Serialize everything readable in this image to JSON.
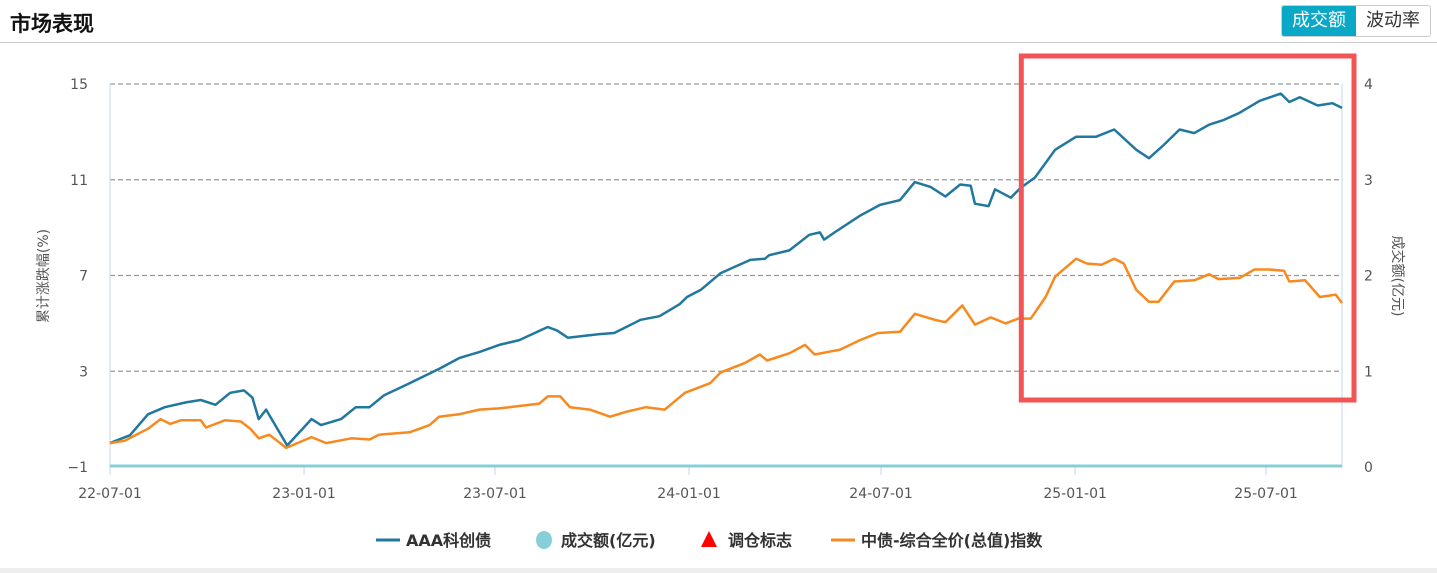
{
  "header": {
    "title": "市场表现",
    "tabs": [
      {
        "label": "成交额",
        "active": true
      },
      {
        "label": "波动率",
        "active": false
      }
    ]
  },
  "colors": {
    "series1": "#21789e",
    "series2": "#f7891f",
    "volume": "#86cfd8",
    "marker": "#ff0000",
    "highlight": "#f25555",
    "accent": "#0aa8c7"
  },
  "chart_data": {
    "type": "line",
    "ylabel": "累计涨跌幅(%)",
    "y2label": "成交额(亿元)",
    "ylim": [
      -1,
      15
    ],
    "y2lim": [
      0,
      4
    ],
    "yticks": [
      "15",
      "11",
      "7",
      "3",
      "−1"
    ],
    "y2ticks": [
      "4",
      "3",
      "2",
      "1",
      "0"
    ],
    "xticks": [
      "22-07-01",
      "23-01-01",
      "23-07-01",
      "24-01-01",
      "24-07-01",
      "25-01-01",
      "25-07-01"
    ],
    "xrange": [
      "2022-07-01",
      "2025-09-11"
    ],
    "grid": "horizontal dashed",
    "legend_position": "bottom",
    "legend": [
      "AAA科创债",
      "成交额(亿元)",
      "调仓标志",
      "中债-综合全价(总值)指数"
    ],
    "highlight_box": {
      "from": "2024-11-10",
      "to": "2025-09-11"
    },
    "series": [
      {
        "name": "AAA科创债",
        "axis": "left",
        "points": [
          [
            "2022-07-01",
            0.0
          ],
          [
            "2022-07-20",
            0.33
          ],
          [
            "2022-08-06",
            1.2
          ],
          [
            "2022-08-22",
            1.5
          ],
          [
            "2022-09-11",
            1.7
          ],
          [
            "2022-09-25",
            1.8
          ],
          [
            "2022-10-09",
            1.6
          ],
          [
            "2022-10-23",
            2.1
          ],
          [
            "2022-11-05",
            2.2
          ],
          [
            "2022-11-13",
            1.9
          ],
          [
            "2022-11-19",
            1.0
          ],
          [
            "2022-11-26",
            1.4
          ],
          [
            "2022-12-16",
            -0.1
          ],
          [
            "2023-01-08",
            1.0
          ],
          [
            "2023-01-17",
            0.75
          ],
          [
            "2023-02-05",
            1.0
          ],
          [
            "2023-02-19",
            1.5
          ],
          [
            "2023-03-04",
            1.5
          ],
          [
            "2023-03-18",
            2.0
          ],
          [
            "2023-04-11",
            2.5
          ],
          [
            "2023-05-09",
            3.1
          ],
          [
            "2023-05-28",
            3.55
          ],
          [
            "2023-06-16",
            3.8
          ],
          [
            "2023-07-05",
            4.1
          ],
          [
            "2023-07-24",
            4.3
          ],
          [
            "2023-08-20",
            4.85
          ],
          [
            "2023-08-29",
            4.7
          ],
          [
            "2023-09-08",
            4.4
          ],
          [
            "2023-10-08",
            4.55
          ],
          [
            "2023-10-22",
            4.6
          ],
          [
            "2023-11-16",
            5.15
          ],
          [
            "2023-12-04",
            5.3
          ],
          [
            "2023-12-23",
            5.8
          ],
          [
            "2023-12-30",
            6.1
          ],
          [
            "2024-01-12",
            6.4
          ],
          [
            "2024-01-31",
            7.1
          ],
          [
            "2024-02-28",
            7.65
          ],
          [
            "2024-03-13",
            7.7
          ],
          [
            "2024-03-17",
            7.85
          ],
          [
            "2024-04-05",
            8.05
          ],
          [
            "2024-04-24",
            8.7
          ],
          [
            "2024-05-04",
            8.8
          ],
          [
            "2024-05-08",
            8.5
          ],
          [
            "2024-05-18",
            8.8
          ],
          [
            "2024-06-11",
            9.5
          ],
          [
            "2024-06-30",
            9.95
          ],
          [
            "2024-07-19",
            10.15
          ],
          [
            "2024-08-02",
            10.9
          ],
          [
            "2024-08-17",
            10.7
          ],
          [
            "2024-08-31",
            10.3
          ],
          [
            "2024-09-14",
            10.8
          ],
          [
            "2024-09-24",
            10.75
          ],
          [
            "2024-09-28",
            10.0
          ],
          [
            "2024-10-11",
            9.9
          ],
          [
            "2024-10-17",
            10.6
          ],
          [
            "2024-11-01",
            10.25
          ],
          [
            "2024-11-10",
            10.65
          ],
          [
            "2024-11-24",
            11.1
          ],
          [
            "2024-12-13",
            12.25
          ],
          [
            "2025-01-02",
            12.8
          ],
          [
            "2025-01-21",
            12.8
          ],
          [
            "2025-02-07",
            13.1
          ],
          [
            "2025-02-28",
            12.25
          ],
          [
            "2025-03-12",
            11.9
          ],
          [
            "2025-03-26",
            12.45
          ],
          [
            "2025-04-10",
            13.1
          ],
          [
            "2025-04-24",
            12.95
          ],
          [
            "2025-05-08",
            13.3
          ],
          [
            "2025-05-22",
            13.5
          ],
          [
            "2025-06-06",
            13.8
          ],
          [
            "2025-06-25",
            14.3
          ],
          [
            "2025-07-15",
            14.6
          ],
          [
            "2025-07-23",
            14.25
          ],
          [
            "2025-08-02",
            14.45
          ],
          [
            "2025-08-19",
            14.1
          ],
          [
            "2025-09-02",
            14.2
          ],
          [
            "2025-09-11",
            14.0
          ]
        ]
      },
      {
        "name": "成交额(亿元)",
        "axis": "right",
        "points": [
          [
            "2022-07-01",
            0.01
          ],
          [
            "2025-09-11",
            0.01
          ]
        ]
      },
      {
        "name": "中债-综合全价(总值)指数",
        "axis": "left",
        "points": [
          [
            "2022-07-01",
            0.0
          ],
          [
            "2022-07-15",
            0.1
          ],
          [
            "2022-08-06",
            0.6
          ],
          [
            "2022-08-18",
            1.0
          ],
          [
            "2022-08-27",
            0.8
          ],
          [
            "2022-09-06",
            0.95
          ],
          [
            "2022-09-25",
            0.95
          ],
          [
            "2022-09-30",
            0.65
          ],
          [
            "2022-10-18",
            0.95
          ],
          [
            "2022-11-02",
            0.9
          ],
          [
            "2022-11-11",
            0.6
          ],
          [
            "2022-11-19",
            0.2
          ],
          [
            "2022-11-29",
            0.35
          ],
          [
            "2022-12-15",
            -0.2
          ],
          [
            "2023-01-08",
            0.25
          ],
          [
            "2023-01-22",
            0.0
          ],
          [
            "2023-02-15",
            0.2
          ],
          [
            "2023-03-04",
            0.15
          ],
          [
            "2023-03-13",
            0.35
          ],
          [
            "2023-04-11",
            0.45
          ],
          [
            "2023-04-30",
            0.75
          ],
          [
            "2023-05-09",
            1.1
          ],
          [
            "2023-05-28",
            1.2
          ],
          [
            "2023-06-16",
            1.4
          ],
          [
            "2023-07-05",
            1.45
          ],
          [
            "2023-07-24",
            1.55
          ],
          [
            "2023-08-12",
            1.65
          ],
          [
            "2023-08-20",
            1.95
          ],
          [
            "2023-09-01",
            1.95
          ],
          [
            "2023-09-10",
            1.5
          ],
          [
            "2023-09-29",
            1.4
          ],
          [
            "2023-10-18",
            1.1
          ],
          [
            "2023-11-02",
            1.3
          ],
          [
            "2023-11-21",
            1.5
          ],
          [
            "2023-12-09",
            1.4
          ],
          [
            "2023-12-28",
            2.1
          ],
          [
            "2024-01-21",
            2.5
          ],
          [
            "2024-01-31",
            2.95
          ],
          [
            "2024-02-23",
            3.35
          ],
          [
            "2024-03-08",
            3.7
          ],
          [
            "2024-03-15",
            3.45
          ],
          [
            "2024-04-05",
            3.75
          ],
          [
            "2024-04-20",
            4.1
          ],
          [
            "2024-04-29",
            3.7
          ],
          [
            "2024-05-23",
            3.9
          ],
          [
            "2024-06-11",
            4.3
          ],
          [
            "2024-06-28",
            4.6
          ],
          [
            "2024-07-19",
            4.65
          ],
          [
            "2024-08-02",
            5.4
          ],
          [
            "2024-08-21",
            5.15
          ],
          [
            "2024-08-31",
            5.05
          ],
          [
            "2024-09-16",
            5.75
          ],
          [
            "2024-09-28",
            4.95
          ],
          [
            "2024-10-13",
            5.25
          ],
          [
            "2024-10-27",
            5.0
          ],
          [
            "2024-11-08",
            5.2
          ],
          [
            "2024-11-20",
            5.2
          ],
          [
            "2024-12-04",
            6.1
          ],
          [
            "2024-12-13",
            6.95
          ],
          [
            "2025-01-02",
            7.7
          ],
          [
            "2025-01-12",
            7.5
          ],
          [
            "2025-01-26",
            7.45
          ],
          [
            "2025-02-07",
            7.7
          ],
          [
            "2025-02-16",
            7.5
          ],
          [
            "2025-02-28",
            6.4
          ],
          [
            "2025-03-12",
            5.9
          ],
          [
            "2025-03-21",
            5.9
          ],
          [
            "2025-04-05",
            6.75
          ],
          [
            "2025-04-24",
            6.8
          ],
          [
            "2025-05-08",
            7.05
          ],
          [
            "2025-05-17",
            6.85
          ],
          [
            "2025-06-06",
            6.9
          ],
          [
            "2025-06-20",
            7.25
          ],
          [
            "2025-07-04",
            7.25
          ],
          [
            "2025-07-18",
            7.2
          ],
          [
            "2025-07-23",
            6.75
          ],
          [
            "2025-08-07",
            6.8
          ],
          [
            "2025-08-21",
            6.1
          ],
          [
            "2025-09-05",
            6.2
          ],
          [
            "2025-09-11",
            5.85
          ]
        ]
      }
    ]
  }
}
